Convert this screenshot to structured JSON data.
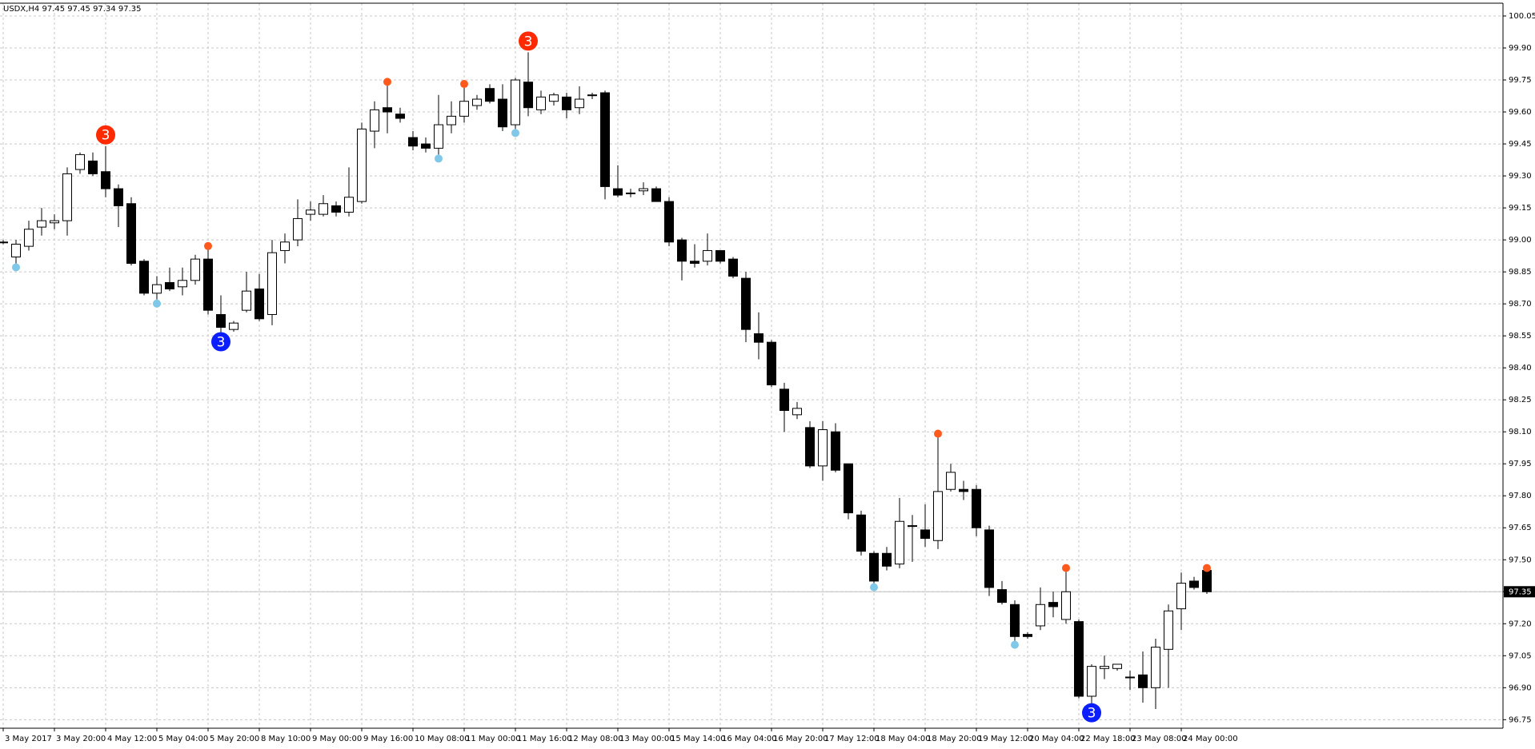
{
  "chart_data": {
    "type": "candlestick",
    "title": "USDX,H4  97.45 97.45 97.34 97.35",
    "categories": [
      "3 May 2017",
      null,
      null,
      null,
      "3 May 20:00",
      null,
      null,
      null,
      "4 May 12:00",
      null,
      null,
      null,
      "5 May 04:00",
      null,
      null,
      null,
      "5 May 20:00",
      null,
      null,
      null,
      "8 May 10:00",
      null,
      null,
      null,
      "9 May 00:00",
      null,
      null,
      null,
      "9 May 16:00",
      null,
      null,
      null,
      "10 May 08:00",
      null,
      null,
      null,
      "11 May 00:00",
      null,
      null,
      null,
      "11 May 16:00",
      null,
      null,
      null,
      "12 May 08:00",
      null,
      null,
      null,
      "13 May 00:00",
      null,
      null,
      null,
      "15 May 14:00",
      null,
      null,
      null,
      "16 May 04:00",
      null,
      null,
      null,
      "16 May 20:00",
      null,
      null,
      null,
      "17 May 12:00",
      null,
      null,
      null,
      "18 May 04:00",
      null,
      null,
      null,
      "18 May 20:00",
      null,
      null,
      null,
      "19 May 12:00",
      null,
      null,
      null,
      "20 May 04:00",
      null,
      null,
      null,
      "22 May 18:00",
      null,
      null,
      null,
      "23 May 08:00",
      null,
      null,
      null,
      "24 May 00:00",
      null,
      null
    ],
    "open": [
      98.99,
      98.92,
      98.97,
      99.06,
      99.08,
      99.09,
      99.33,
      99.37,
      99.32,
      99.24,
      99.17,
      98.9,
      98.75,
      98.8,
      98.78,
      98.81,
      98.91,
      98.65,
      98.58,
      98.67,
      98.77,
      98.65,
      98.95,
      99.0,
      99.12,
      99.12,
      99.16,
      99.13,
      99.18,
      99.51,
      99.62,
      99.59,
      99.48,
      99.45,
      99.43,
      99.54,
      99.58,
      99.63,
      99.71,
      99.66,
      99.54,
      99.74,
      99.61,
      99.65,
      99.67,
      99.62,
      99.68,
      99.69,
      99.24,
      99.22,
      99.23,
      99.24,
      99.18,
      99.0,
      98.9,
      98.9,
      98.95,
      98.91,
      98.82,
      98.56,
      98.52,
      98.3,
      98.18,
      98.12,
      97.94,
      98.1,
      97.95,
      97.71,
      97.53,
      97.53,
      97.48,
      97.66,
      97.64,
      97.59,
      97.83,
      97.83,
      97.83,
      97.64,
      97.36,
      97.29,
      97.15,
      97.19,
      97.3,
      97.22,
      97.21,
      96.86,
      96.99,
      96.99,
      96.95,
      96.96,
      96.9,
      97.08,
      97.27,
      97.4,
      97.45
    ],
    "high": [
      99.0,
      99.0,
      99.09,
      99.15,
      99.12,
      99.34,
      99.41,
      99.41,
      99.44,
      99.26,
      99.2,
      98.91,
      98.83,
      98.87,
      98.87,
      98.93,
      98.96,
      98.74,
      98.62,
      98.85,
      98.84,
      99.0,
      99.03,
      99.19,
      99.18,
      99.21,
      99.18,
      99.34,
      99.55,
      99.65,
      99.73,
      99.62,
      99.51,
      99.48,
      99.68,
      99.65,
      99.72,
      99.68,
      99.73,
      99.73,
      99.76,
      99.88,
      99.7,
      99.69,
      99.69,
      99.72,
      99.69,
      99.7,
      99.35,
      99.24,
      99.27,
      99.25,
      99.2,
      99.01,
      98.98,
      99.03,
      98.95,
      98.92,
      98.85,
      98.66,
      98.53,
      98.33,
      98.24,
      98.15,
      98.15,
      98.14,
      97.95,
      97.73,
      97.54,
      97.56,
      97.79,
      97.71,
      97.76,
      98.08,
      97.95,
      97.87,
      97.85,
      97.66,
      97.4,
      97.31,
      97.16,
      97.37,
      97.35,
      97.45,
      97.22,
      97.01,
      97.05,
      97.01,
      96.98,
      97.07,
      97.13,
      97.29,
      97.44,
      97.42,
      97.45
    ],
    "low": [
      98.98,
      98.89,
      98.95,
      99.02,
      99.05,
      99.02,
      99.31,
      99.3,
      99.2,
      99.06,
      98.88,
      98.74,
      98.72,
      98.76,
      98.74,
      98.79,
      98.65,
      98.56,
      98.57,
      98.66,
      98.62,
      98.6,
      98.89,
      98.97,
      99.09,
      99.11,
      99.11,
      99.11,
      99.17,
      99.43,
      99.5,
      99.55,
      99.42,
      99.41,
      99.4,
      99.5,
      99.55,
      99.61,
      99.64,
      99.51,
      99.52,
      99.58,
      99.59,
      99.63,
      99.57,
      99.59,
      99.66,
      99.19,
      99.2,
      99.2,
      99.21,
      99.18,
      98.97,
      98.81,
      98.87,
      98.88,
      98.89,
      98.82,
      98.52,
      98.44,
      98.31,
      98.1,
      98.16,
      97.93,
      97.87,
      97.91,
      97.69,
      97.52,
      97.39,
      97.45,
      97.46,
      97.49,
      97.56,
      97.55,
      97.82,
      97.78,
      97.61,
      97.33,
      97.29,
      97.12,
      97.13,
      97.17,
      97.23,
      97.2,
      96.85,
      96.82,
      96.94,
      96.98,
      96.89,
      96.83,
      96.8,
      96.9,
      97.17,
      97.36,
      97.34
    ],
    "close": [
      98.99,
      98.98,
      99.05,
      99.09,
      99.09,
      99.31,
      99.4,
      99.31,
      99.24,
      99.16,
      98.89,
      98.75,
      98.79,
      98.77,
      98.81,
      98.91,
      98.67,
      98.59,
      98.61,
      98.76,
      98.63,
      98.94,
      98.99,
      99.1,
      99.14,
      99.17,
      99.13,
      99.2,
      99.52,
      99.61,
      99.6,
      99.57,
      99.44,
      99.43,
      99.54,
      99.58,
      99.65,
      99.66,
      99.65,
      99.53,
      99.75,
      99.62,
      99.67,
      99.68,
      99.61,
      99.66,
      99.68,
      99.25,
      99.21,
      99.22,
      99.24,
      99.18,
      98.99,
      98.9,
      98.89,
      98.95,
      98.9,
      98.83,
      98.58,
      98.52,
      98.32,
      98.2,
      98.21,
      97.94,
      98.11,
      97.92,
      97.72,
      97.54,
      97.4,
      97.47,
      97.68,
      97.66,
      97.6,
      97.82,
      97.91,
      97.82,
      97.65,
      97.37,
      97.3,
      97.14,
      97.14,
      97.29,
      97.28,
      97.35,
      96.86,
      97.0,
      97.0,
      97.01,
      96.95,
      96.9,
      97.09,
      97.26,
      97.39,
      97.37,
      97.35
    ],
    "top_signals": [
      null,
      null,
      null,
      null,
      null,
      null,
      null,
      null,
      "3",
      null,
      null,
      null,
      null,
      null,
      null,
      null,
      true,
      null,
      null,
      null,
      null,
      null,
      null,
      null,
      null,
      null,
      null,
      null,
      null,
      null,
      true,
      null,
      null,
      null,
      null,
      null,
      true,
      null,
      null,
      null,
      null,
      "3",
      null,
      null,
      null,
      null,
      null,
      null,
      null,
      null,
      null,
      null,
      null,
      null,
      null,
      null,
      null,
      null,
      null,
      null,
      null,
      null,
      null,
      null,
      null,
      null,
      null,
      null,
      null,
      null,
      null,
      null,
      null,
      true,
      null,
      null,
      null,
      null,
      null,
      null,
      null,
      null,
      null,
      true,
      null,
      null,
      null,
      null,
      null,
      null,
      null,
      null,
      null,
      null,
      true
    ],
    "bottom_signals": [
      null,
      true,
      null,
      null,
      null,
      null,
      null,
      null,
      null,
      null,
      null,
      null,
      true,
      null,
      null,
      null,
      null,
      "3",
      null,
      null,
      null,
      null,
      null,
      null,
      null,
      null,
      null,
      null,
      null,
      null,
      null,
      null,
      null,
      null,
      true,
      null,
      null,
      null,
      null,
      null,
      true,
      null,
      null,
      null,
      null,
      null,
      null,
      null,
      null,
      null,
      null,
      null,
      null,
      null,
      null,
      null,
      null,
      null,
      null,
      null,
      null,
      null,
      null,
      null,
      null,
      null,
      null,
      null,
      true,
      null,
      null,
      null,
      null,
      null,
      null,
      null,
      null,
      null,
      null,
      true,
      null,
      null,
      null,
      null,
      null,
      "3",
      null,
      null,
      null,
      null,
      null,
      null,
      null,
      null,
      null
    ],
    "up_color": "#ffffff",
    "down_color": "#000000",
    "wick_color": "#000000",
    "top_signal_color": "#ff2a00",
    "bottom_signal_color": "#0a1eff",
    "top_dot_color": "#ff5a1e",
    "bottom_drop_color": "#7fc8e8",
    "current_price": 97.35,
    "ylim": [
      96.71,
      100.11
    ],
    "yticks": [
      100.05,
      {
        "value": 99.9,
        "label": "99.90"
      },
      99.75,
      {
        "value": 99.6,
        "label": "99.60"
      },
      99.45,
      {
        "value": 99.3,
        "label": "99.30"
      },
      99.15,
      {
        "value": 99.0,
        "label": "99.00"
      },
      98.85,
      {
        "value": 98.7,
        "label": "98.70"
      },
      98.55,
      {
        "value": 98.4,
        "label": "98.40"
      },
      98.25,
      {
        "value": 98.1,
        "label": "98.10"
      },
      97.95,
      {
        "value": 97.8,
        "label": "97.80"
      },
      97.65,
      {
        "value": 97.5,
        "label": "97.50"
      },
      97.35,
      {
        "value": 97.2,
        "label": "97.20"
      },
      97.05,
      {
        "value": 96.9,
        "label": "96.90"
      },
      96.75
    ],
    "grid": true,
    "grid_color": "#c8c8c8"
  }
}
